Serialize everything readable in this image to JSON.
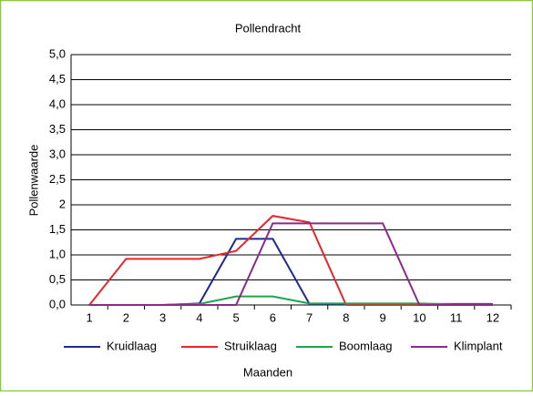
{
  "chart_data": {
    "type": "line",
    "title": "Pollendracht",
    "xlabel": "Maanden",
    "ylabel": "Pollenwaarde",
    "categories": [
      "1",
      "2",
      "3",
      "4",
      "5",
      "6",
      "7",
      "8",
      "9",
      "10",
      "11",
      "12"
    ],
    "series": [
      {
        "name": "Kruidlaag",
        "color": "#1f2a8c",
        "values": [
          0,
          0,
          0,
          0.03,
          1.32,
          1.32,
          0.02,
          0.02,
          0.02,
          0.02,
          0.02,
          0.02
        ]
      },
      {
        "name": "Struiklaag",
        "color": "#e8262a",
        "values": [
          0,
          0.92,
          0.92,
          0.92,
          1.08,
          1.78,
          1.65,
          0,
          0,
          0,
          0,
          0
        ]
      },
      {
        "name": "Boomlaag",
        "color": "#1aa64a",
        "values": [
          0,
          0,
          0,
          0.02,
          0.17,
          0.17,
          0.03,
          0.03,
          0.03,
          0.03,
          0.01,
          0.01
        ]
      },
      {
        "name": "Klimplant",
        "color": "#8b2a8b",
        "values": [
          0,
          0,
          0,
          0,
          0,
          1.63,
          1.63,
          1.63,
          1.63,
          0,
          0,
          0
        ]
      }
    ],
    "ylim": [
      0,
      5
    ],
    "yticks": [
      {
        "value": 0,
        "label": "0,0"
      },
      {
        "value": 0.5,
        "label": "0,5"
      },
      {
        "value": 1,
        "label": "1,0"
      },
      {
        "value": 1.5,
        "label": "1,5"
      },
      2,
      {
        "value": 2.5,
        "label": "2,5"
      },
      {
        "value": 3,
        "label": "3,0"
      },
      {
        "value": 3.5,
        "label": "3,5"
      },
      {
        "value": 4,
        "label": "4,0"
      },
      {
        "value": 4.5,
        "label": "4,5"
      },
      {
        "value": 5,
        "label": "5,0"
      }
    ],
    "grid": true,
    "legend": "bottom"
  }
}
